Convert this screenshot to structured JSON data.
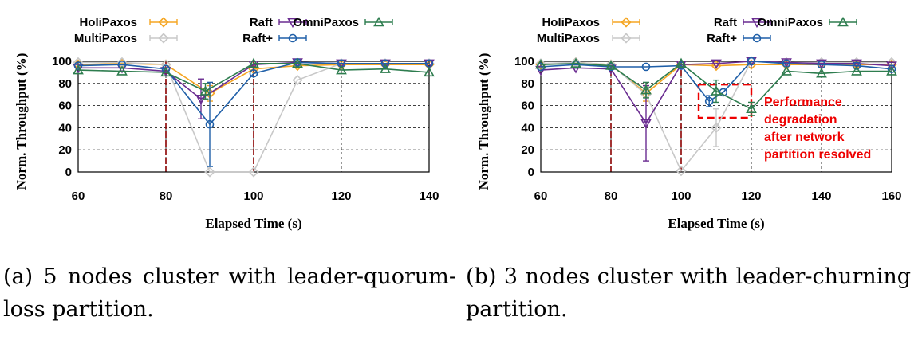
{
  "captions": [
    "(a) 5 nodes cluster with leader-quorum-loss partition.",
    "(b) 3 nodes cluster with leader-churning partition."
  ],
  "colors": {
    "HoliPaxos": "#f5a623",
    "MultiPaxos": "#c8c8c8",
    "Raft": "#6a2c91",
    "Raft+": "#1f5fa8",
    "OmniPaxos": "#2e7d4f",
    "annotation": "#ee0000"
  },
  "chart_data": [
    {
      "type": "line",
      "xlabel": "Elapsed Time (s)",
      "ylabel": "Norm. Throughput (%)",
      "xlim": [
        60,
        140
      ],
      "ylim": [
        0,
        100
      ],
      "xticks": [
        60,
        80,
        100,
        120,
        140
      ],
      "yticks": [
        0,
        20,
        40,
        60,
        80,
        100
      ],
      "grid": true,
      "legend": "top",
      "vlines": [
        80,
        100
      ],
      "series": [
        {
          "name": "HoliPaxos",
          "marker": "diamond",
          "points": [
            [
              60,
              97
            ],
            [
              70,
              98
            ],
            [
              80,
              97
            ],
            [
              90,
              71
            ],
            [
              100,
              93
            ],
            [
              110,
              96
            ],
            [
              120,
              97
            ],
            [
              130,
              97
            ],
            [
              140,
              97
            ]
          ],
          "errors": [
            [
              90,
              7
            ]
          ]
        },
        {
          "name": "MultiPaxos",
          "marker": "diamond",
          "points": [
            [
              60,
              99
            ],
            [
              70,
              99
            ],
            [
              80,
              97
            ],
            [
              90,
              0
            ],
            [
              100,
              0
            ],
            [
              110,
              83
            ],
            [
              120,
              98
            ],
            [
              130,
              98
            ],
            [
              140,
              98
            ]
          ]
        },
        {
          "name": "Raft",
          "marker": "triangle-down",
          "points": [
            [
              60,
              94
            ],
            [
              70,
              94
            ],
            [
              80,
              91
            ],
            [
              88,
              66
            ],
            [
              100,
              97
            ],
            [
              110,
              99
            ],
            [
              120,
              98
            ],
            [
              130,
              98
            ],
            [
              140,
              98
            ]
          ],
          "errors": [
            [
              88,
              18
            ]
          ]
        },
        {
          "name": "Raft+",
          "marker": "circle",
          "points": [
            [
              60,
              96
            ],
            [
              70,
              97
            ],
            [
              80,
              93
            ],
            [
              90,
              43
            ],
            [
              100,
              89
            ],
            [
              110,
              99
            ],
            [
              120,
              98
            ],
            [
              130,
              98
            ],
            [
              140,
              98
            ]
          ],
          "errors": [
            [
              90,
              38
            ]
          ]
        },
        {
          "name": "OmniPaxos",
          "marker": "triangle-up",
          "points": [
            [
              60,
              92
            ],
            [
              70,
              91
            ],
            [
              80,
              90
            ],
            [
              89,
              73
            ],
            [
              100,
              98
            ],
            [
              110,
              98
            ],
            [
              120,
              92
            ],
            [
              130,
              93
            ],
            [
              140,
              90
            ]
          ],
          "errors": [
            [
              89,
              7
            ]
          ]
        }
      ]
    },
    {
      "type": "line",
      "xlabel": "Elapsed Time (s)",
      "ylabel": "Norm. Throughput (%)",
      "xlim": [
        60,
        160
      ],
      "ylim": [
        0,
        100
      ],
      "xticks": [
        60,
        80,
        100,
        120,
        140,
        160
      ],
      "yticks": [
        0,
        20,
        40,
        60,
        80,
        100
      ],
      "grid": true,
      "legend": "top",
      "vlines": [
        80,
        100
      ],
      "annotation": {
        "text": [
          "Performance",
          "degradation",
          "after network",
          "partition resolved"
        ],
        "box_x": [
          105,
          120
        ],
        "box_y": [
          49,
          79
        ]
      },
      "series": [
        {
          "name": "HoliPaxos",
          "marker": "diamond",
          "points": [
            [
              60,
              97
            ],
            [
              70,
              99
            ],
            [
              80,
              97
            ],
            [
              90,
              71
            ],
            [
              100,
              97
            ],
            [
              110,
              96
            ],
            [
              120,
              97
            ],
            [
              130,
              97
            ],
            [
              140,
              97
            ],
            [
              150,
              97
            ],
            [
              160,
              97
            ]
          ],
          "errors": [
            [
              90,
              7
            ]
          ]
        },
        {
          "name": "MultiPaxos",
          "marker": "diamond",
          "points": [
            [
              60,
              98
            ],
            [
              70,
              99
            ],
            [
              80,
              97
            ],
            [
              90,
              70
            ],
            [
              100,
              1
            ],
            [
              110,
              40
            ],
            [
              120,
              100
            ],
            [
              130,
              99
            ],
            [
              140,
              99
            ],
            [
              150,
              99
            ],
            [
              160,
              99
            ]
          ],
          "errors": [
            [
              110,
              17
            ]
          ]
        },
        {
          "name": "Raft",
          "marker": "triangle-down",
          "points": [
            [
              60,
              92
            ],
            [
              70,
              94
            ],
            [
              80,
              93
            ],
            [
              90,
              44
            ],
            [
              100,
              97
            ],
            [
              110,
              98
            ],
            [
              120,
              100
            ],
            [
              130,
              99
            ],
            [
              140,
              98
            ],
            [
              150,
              98
            ],
            [
              160,
              96
            ]
          ],
          "errors": [
            [
              90,
              34
            ]
          ]
        },
        {
          "name": "Raft+",
          "marker": "circle",
          "points": [
            [
              60,
              95
            ],
            [
              70,
              97
            ],
            [
              80,
              95
            ],
            [
              90,
              95
            ],
            [
              100,
              96
            ],
            [
              108,
              64
            ],
            [
              112,
              72
            ],
            [
              120,
              100
            ],
            [
              130,
              98
            ],
            [
              140,
              97
            ],
            [
              150,
              96
            ],
            [
              160,
              93
            ]
          ],
          "errors": [
            [
              108,
              5
            ]
          ]
        },
        {
          "name": "OmniPaxos",
          "marker": "triangle-up",
          "points": [
            [
              60,
              97
            ],
            [
              70,
              98
            ],
            [
              80,
              96
            ],
            [
              90,
              74
            ],
            [
              100,
              98
            ],
            [
              110,
              73
            ],
            [
              120,
              57
            ],
            [
              130,
              91
            ],
            [
              140,
              89
            ],
            [
              150,
              91
            ],
            [
              160,
              91
            ]
          ],
          "errors": [
            [
              90,
              7
            ],
            [
              110,
              10
            ],
            [
              120,
              6
            ]
          ]
        }
      ]
    }
  ]
}
